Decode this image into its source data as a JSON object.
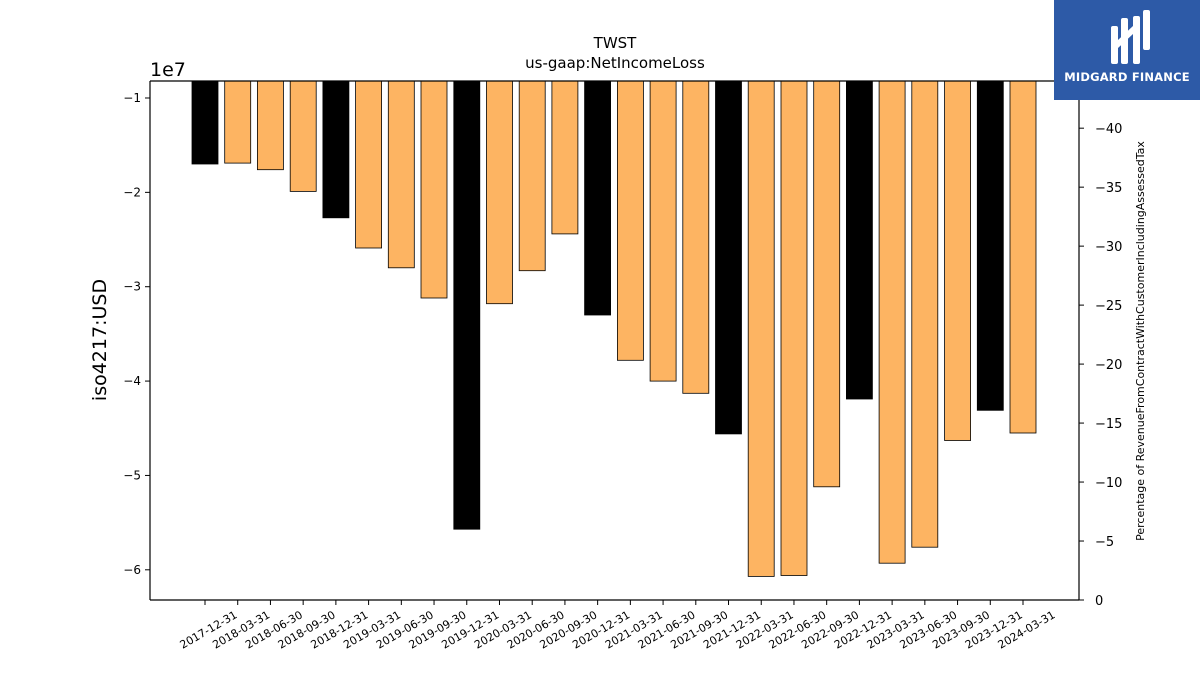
{
  "chart_data": {
    "type": "bar",
    "title": "TWST",
    "subtitle": "us-gaap:NetIncomeLoss",
    "ylabel": "iso4217:USD",
    "y_offset_label": "1e7",
    "y2label": "Percentage of RevenueFromContractWithCustomerIncludingAssessedTax",
    "ylim": [
      -63200000,
      -8200000
    ],
    "y2lim": [
      0,
      -44
    ],
    "y_ticks": [
      -10000000,
      -20000000,
      -30000000,
      -40000000,
      -50000000,
      -60000000
    ],
    "y_tick_labels": [
      "−1",
      "−2",
      "−3",
      "−4",
      "−5",
      "−6"
    ],
    "y2_ticks": [
      0,
      -5,
      -10,
      -15,
      -20,
      -25,
      -30,
      -35,
      -40
    ],
    "y2_tick_labels": [
      "0",
      "−5",
      "−10",
      "−15",
      "−20",
      "−25",
      "−30",
      "−35",
      "−40"
    ],
    "categories": [
      "2017-12-31",
      "2018-03-31",
      "2018-06-30",
      "2018-09-30",
      "2018-12-31",
      "2019-03-31",
      "2019-06-30",
      "2019-09-30",
      "2019-12-31",
      "2020-03-31",
      "2020-06-30",
      "2020-09-30",
      "2020-12-31",
      "2021-03-31",
      "2021-06-30",
      "2021-09-30",
      "2021-12-31",
      "2022-03-31",
      "2022-06-30",
      "2022-09-30",
      "2022-12-31",
      "2023-03-31",
      "2023-06-30",
      "2023-09-30",
      "2023-12-31",
      "2024-03-31"
    ],
    "values": [
      -17000000,
      -16900000,
      -17600000,
      -19900000,
      -22700000,
      -25900000,
      -28000000,
      -31200000,
      -55700000,
      -31800000,
      -28300000,
      -24400000,
      -33000000,
      -37800000,
      -40000000,
      -41300000,
      -45600000,
      -60700000,
      -60600000,
      -51200000,
      -41900000,
      -59300000,
      -57600000,
      -46300000,
      -43100000,
      -45500000
    ],
    "annual": [
      true,
      false,
      false,
      false,
      true,
      false,
      false,
      false,
      true,
      false,
      false,
      false,
      true,
      false,
      false,
      false,
      true,
      false,
      false,
      false,
      true,
      false,
      false,
      false,
      true,
      false
    ],
    "colors": {
      "annual": "#000000",
      "quarterly": "#fdb462",
      "edge": "#000000"
    },
    "grid": false,
    "legend": "none"
  },
  "logo": {
    "text": "MIDGARD FINANCE",
    "color": "#2d5aa7"
  }
}
